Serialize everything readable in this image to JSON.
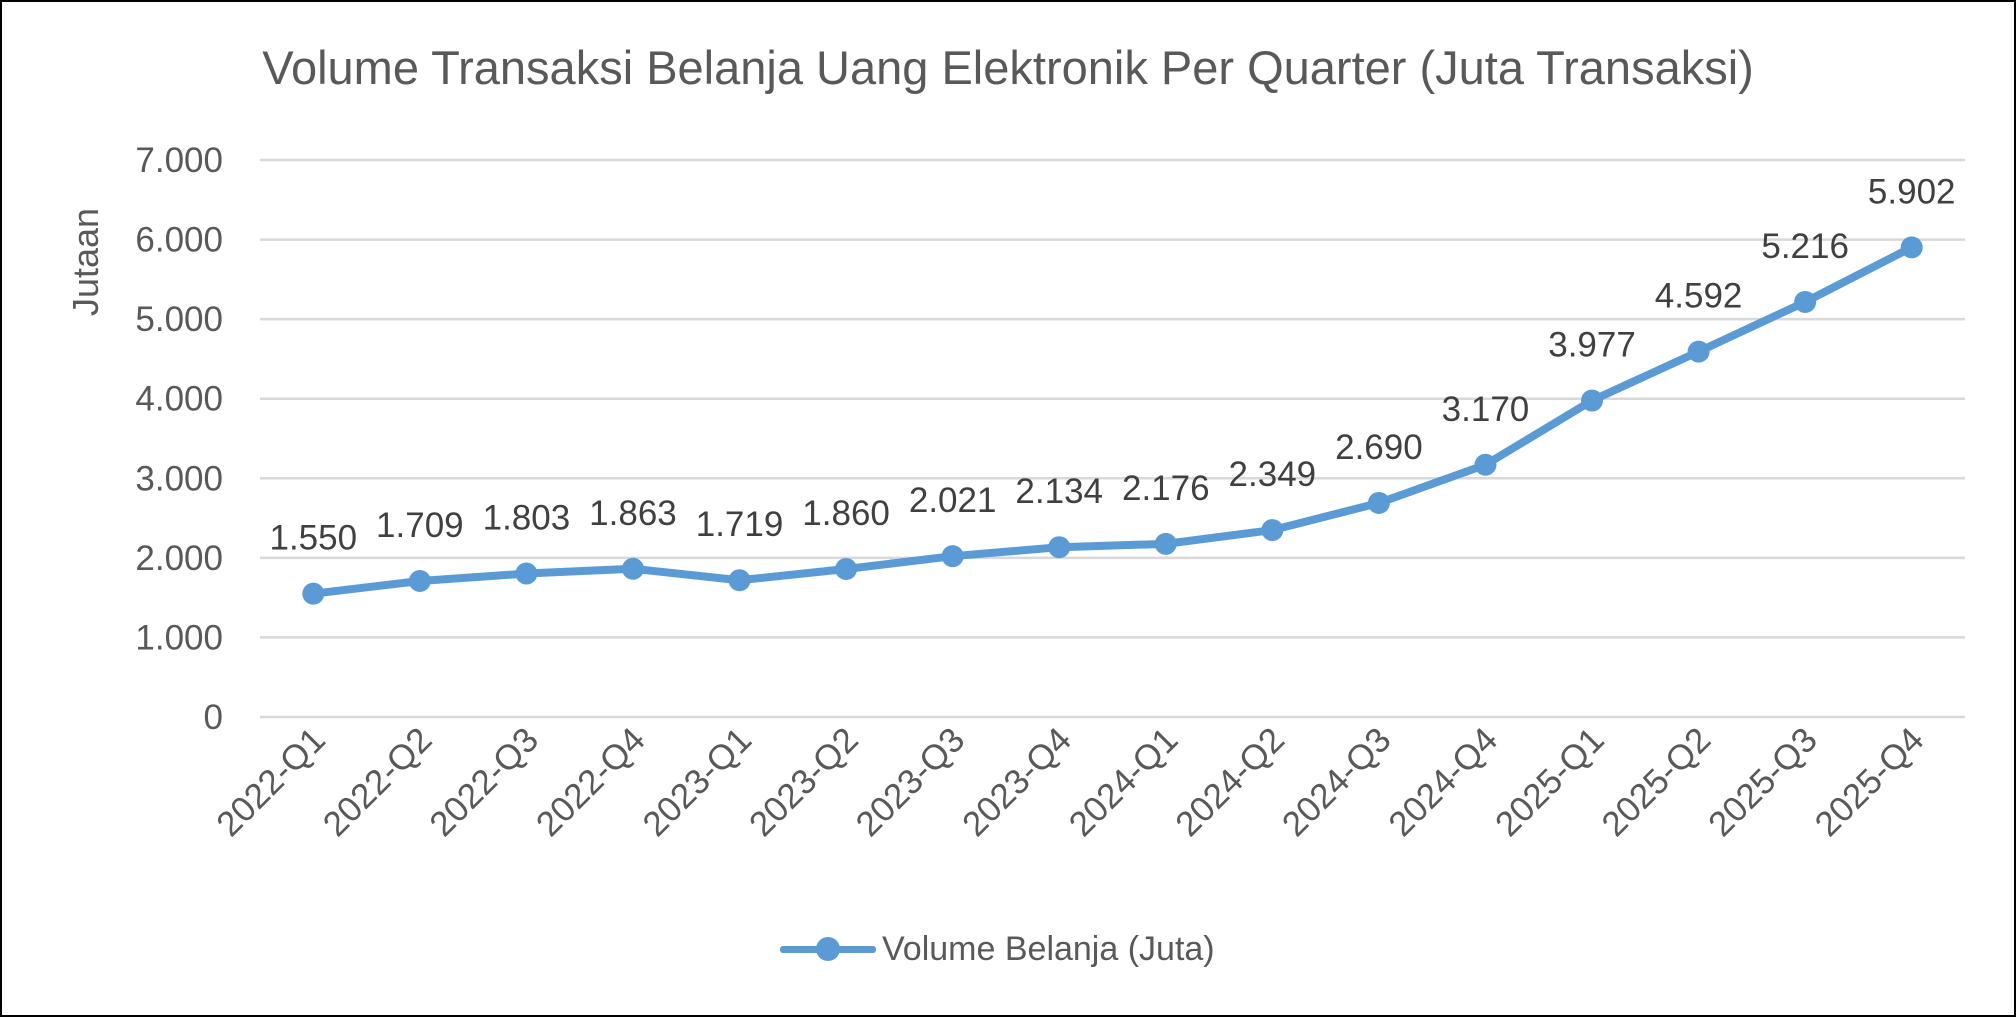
{
  "chart_data": {
    "type": "line",
    "title": "Volume Transaksi Belanja Uang Elektronik Per Quarter (Juta Transaksi)",
    "xlabel": "",
    "ylabel": "Jutaan",
    "categories": [
      "2022-Q1",
      "2022-Q2",
      "2022-Q3",
      "2022-Q4",
      "2023-Q1",
      "2023-Q2",
      "2023-Q3",
      "2023-Q4",
      "2024-Q1",
      "2024-Q2",
      "2024-Q3",
      "2024-Q4",
      "2025-Q1",
      "2025-Q2",
      "2025-Q3",
      "2025-Q4"
    ],
    "series": [
      {
        "name": "Volume Belanja (Juta)",
        "values": [
          1550,
          1709,
          1803,
          1863,
          1719,
          1860,
          2021,
          2134,
          2176,
          2349,
          2690,
          3170,
          3977,
          4592,
          5216,
          5902
        ],
        "data_labels": [
          "1.550",
          "1.709",
          "1.803",
          "1.863",
          "1.719",
          "1.860",
          "2.021",
          "2.134",
          "2.176",
          "2.349",
          "2.690",
          "3.170",
          "3.977",
          "4.592",
          "5.216",
          "5.902"
        ],
        "color": "#5b9bd5"
      }
    ],
    "ylim": [
      0,
      7000
    ],
    "yticks": [
      0,
      1000,
      2000,
      3000,
      4000,
      5000,
      6000,
      7000
    ],
    "ytick_labels": [
      "0",
      "1.000",
      "2.000",
      "3.000",
      "4.000",
      "5.000",
      "6.000",
      "7.000"
    ],
    "grid": true,
    "gridline_color": "#d9d9d9",
    "legend_position": "bottom",
    "markers": "circle"
  }
}
